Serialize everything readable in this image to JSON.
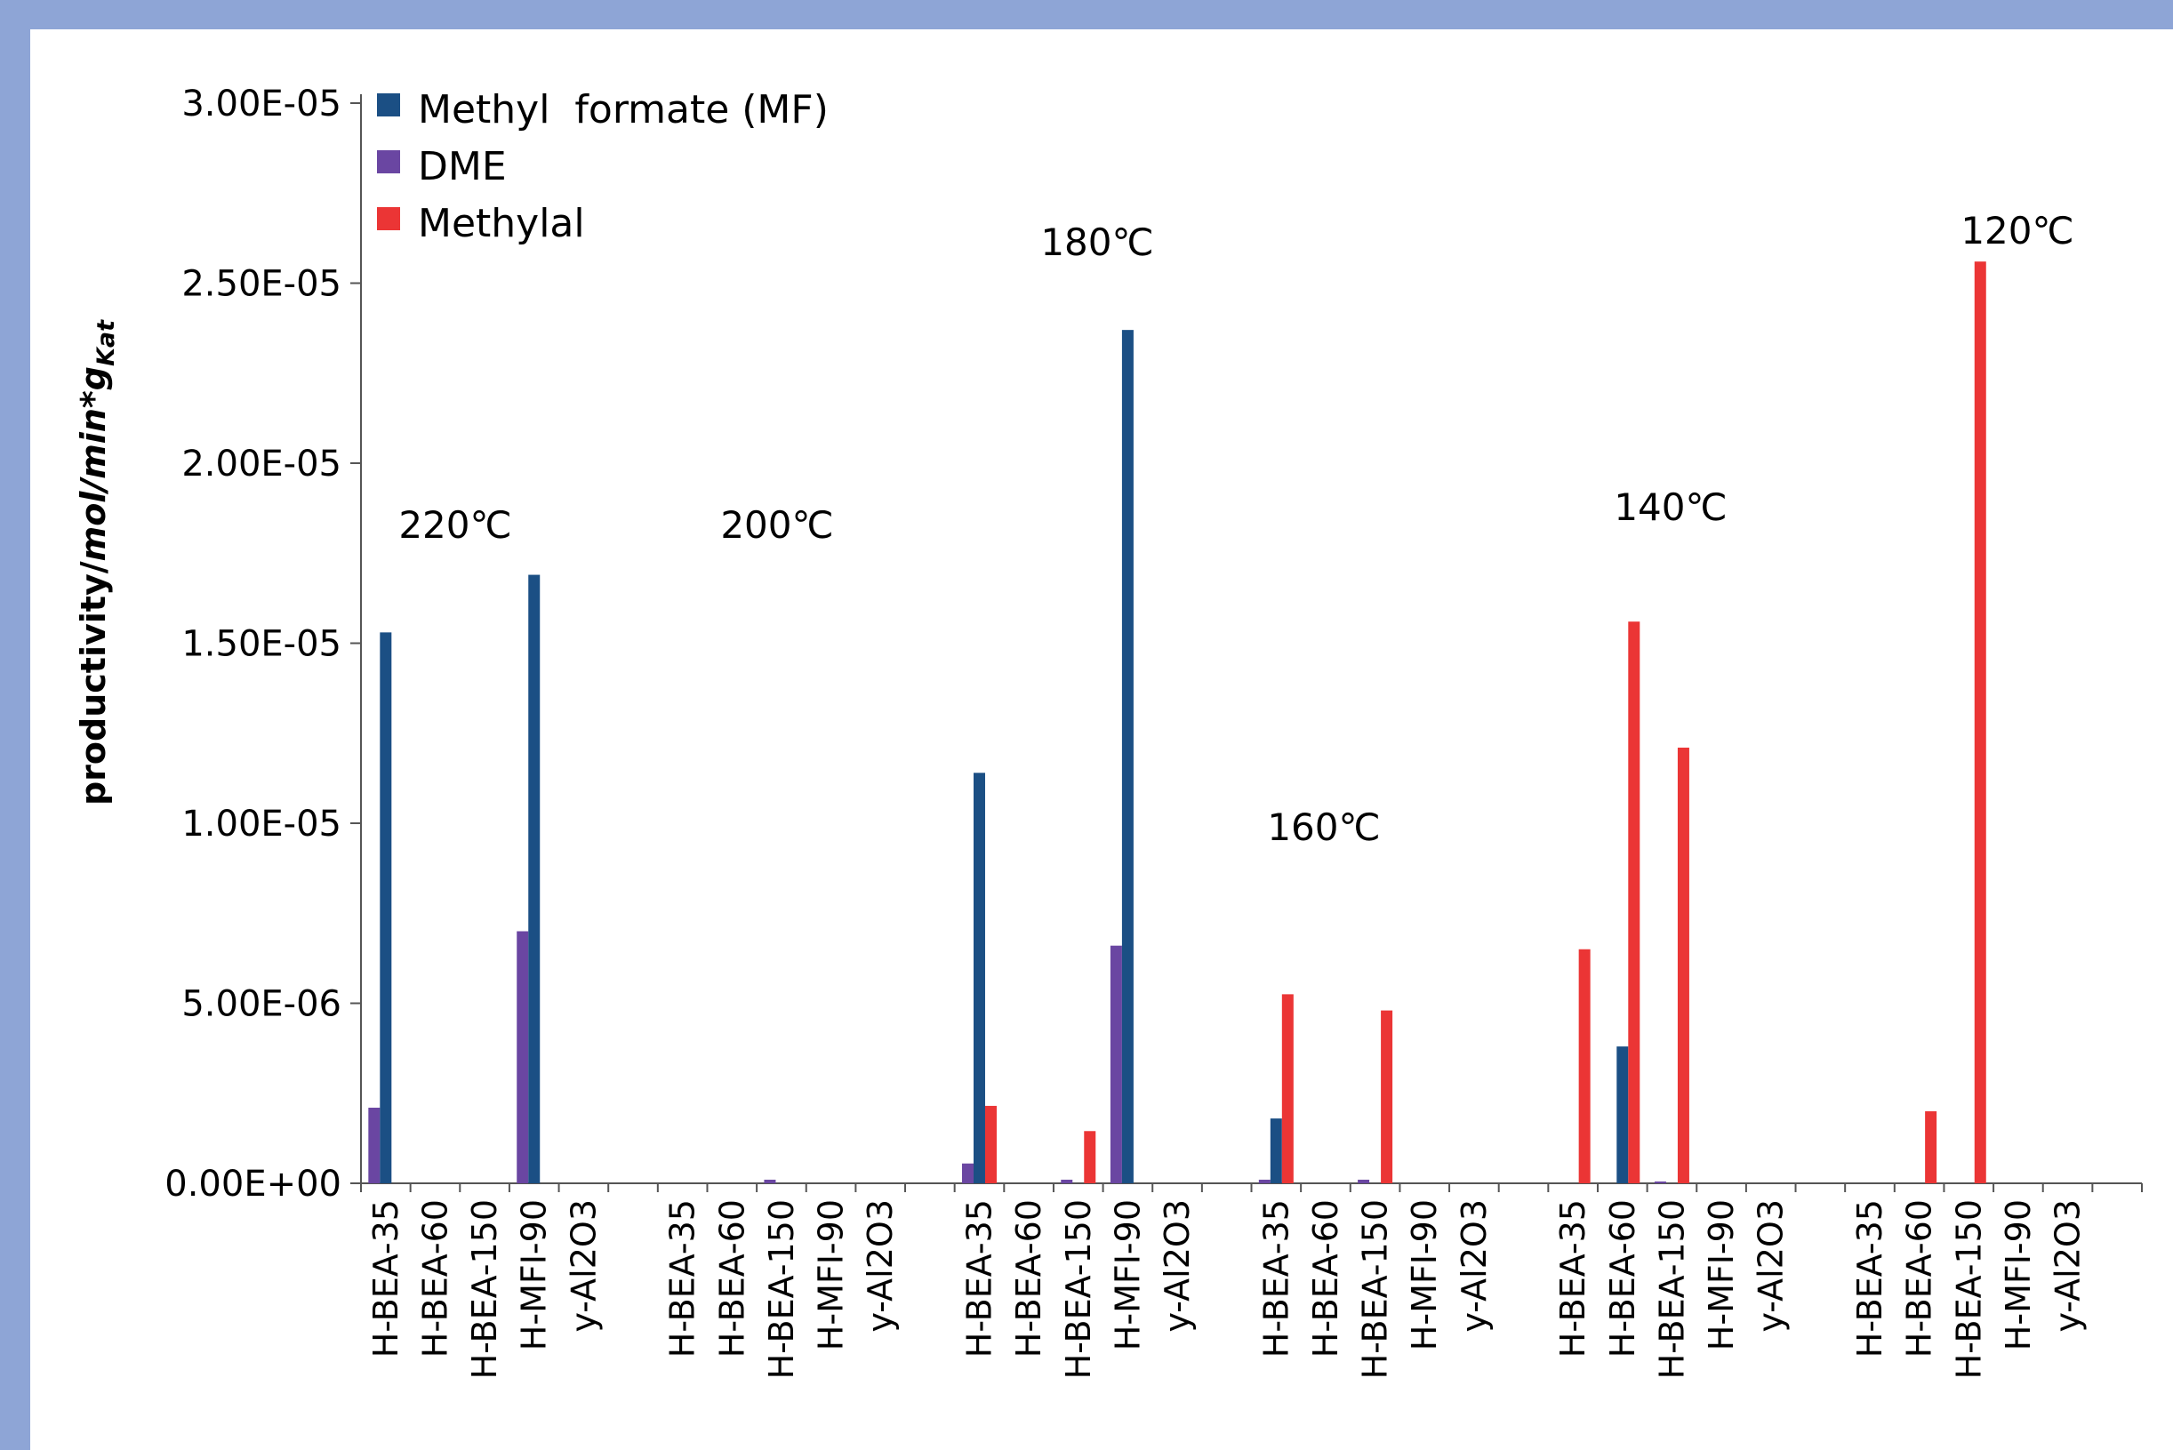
{
  "chart_data": {
    "type": "bar",
    "ylabel": "productivity/",
    "ylabel_unit": "mol/min*g",
    "ylabel_subscript": "Kat",
    "ylim": [
      0,
      3e-05
    ],
    "yticks": [
      0,
      5e-06,
      1e-05,
      1.5e-05,
      2e-05,
      2.5e-05,
      3e-05
    ],
    "ytick_labels": [
      "0.00E+00",
      "5.00E-06",
      "1.00E-05",
      "1.50E-05",
      "2.00E-05",
      "2.50E-05",
      "3.00E-05"
    ],
    "legend_position": "top-left",
    "grid": false,
    "groups": [
      {
        "label": "220℃",
        "categories": [
          "H-BEA-35",
          "H-BEA-60",
          "H-BEA-150",
          "H-MFI-90",
          "y-Al2O3"
        ]
      },
      {
        "label": "200℃",
        "categories": [
          "H-BEA-35",
          "H-BEA-60",
          "H-BEA-150",
          "H-MFI-90",
          "y-Al2O3"
        ]
      },
      {
        "label": "180℃",
        "categories": [
          "H-BEA-35",
          "H-BEA-60",
          "H-BEA-150",
          "H-MFI-90",
          "y-Al2O3"
        ]
      },
      {
        "label": "160℃",
        "categories": [
          "H-BEA-35",
          "H-BEA-60",
          "H-BEA-150",
          "H-MFI-90",
          "y-Al2O3"
        ]
      },
      {
        "label": "140℃",
        "categories": [
          "H-BEA-35",
          "H-BEA-60",
          "H-BEA-150",
          "H-MFI-90",
          "y-Al2O3"
        ]
      },
      {
        "label": "120℃",
        "categories": [
          "H-BEA-35",
          "H-BEA-60",
          "H-BEA-150",
          "H-MFI-90",
          "y-Al2O3"
        ]
      }
    ],
    "series": [
      {
        "name": "DME",
        "color": "#6a46a2",
        "values": [
          2.1e-06,
          0,
          0,
          7e-06,
          0,
          0,
          0,
          1e-07,
          0,
          0,
          5.5e-07,
          0,
          1e-07,
          6.6e-06,
          0,
          1e-07,
          0,
          1e-07,
          0,
          0,
          0,
          0,
          5e-08,
          0,
          0,
          0,
          0,
          0,
          0,
          0
        ]
      },
      {
        "name": "Methyl  formate (MF)",
        "color": "#1b4f84",
        "values": [
          1.53e-05,
          0,
          0,
          1.69e-05,
          0,
          0,
          0,
          0,
          0,
          0,
          1.14e-05,
          0,
          0,
          2.37e-05,
          0,
          1.8e-06,
          0,
          0,
          0,
          0,
          0,
          3.8e-06,
          0,
          0,
          0,
          0,
          0,
          0,
          0,
          0
        ]
      },
      {
        "name": "Methylal",
        "color": "#eb3535",
        "values": [
          0,
          0,
          0,
          0,
          0,
          0,
          0,
          0,
          0,
          0,
          2.15e-06,
          0,
          1.45e-06,
          0,
          0,
          5.25e-06,
          0,
          4.8e-06,
          0,
          0,
          6.5e-06,
          1.56e-05,
          1.21e-05,
          0,
          0,
          0,
          2e-06,
          2.56e-05,
          0,
          0
        ]
      }
    ],
    "legend_order": [
      "Methyl  formate (MF)",
      "DME",
      "Methylal"
    ]
  }
}
